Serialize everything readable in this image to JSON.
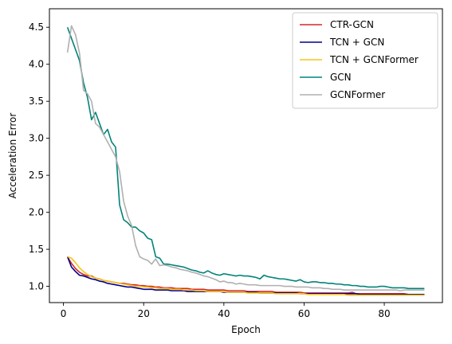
{
  "chart_data": {
    "type": "line",
    "xlabel": "Epoch",
    "ylabel": "Acceleration Error",
    "xlim": [
      -3.5,
      94.5
    ],
    "ylim": [
      0.78,
      4.75
    ],
    "xticks": [
      0,
      20,
      40,
      60,
      80
    ],
    "yticks": [
      1.0,
      1.5,
      2.0,
      2.5,
      3.0,
      3.5,
      4.0,
      4.5
    ],
    "grid": false,
    "legend_position": "top-right",
    "x": [
      1,
      2,
      3,
      4,
      5,
      6,
      7,
      8,
      9,
      10,
      11,
      12,
      13,
      14,
      15,
      16,
      17,
      18,
      19,
      20,
      21,
      22,
      23,
      24,
      25,
      26,
      27,
      28,
      29,
      30,
      31,
      32,
      33,
      34,
      35,
      36,
      37,
      38,
      39,
      40,
      41,
      42,
      43,
      44,
      45,
      46,
      47,
      48,
      49,
      50,
      51,
      52,
      53,
      54,
      55,
      56,
      57,
      58,
      59,
      60,
      61,
      62,
      63,
      64,
      65,
      66,
      67,
      68,
      69,
      70,
      71,
      72,
      73,
      74,
      75,
      76,
      77,
      78,
      79,
      80,
      81,
      82,
      83,
      84,
      85,
      86,
      87,
      88,
      89,
      90
    ],
    "series": [
      {
        "name": "CTR-GCN",
        "color": "#d62728",
        "values": [
          1.4,
          1.31,
          1.24,
          1.19,
          1.16,
          1.14,
          1.14,
          1.11,
          1.1,
          1.08,
          1.07,
          1.06,
          1.05,
          1.04,
          1.04,
          1.03,
          1.02,
          1.02,
          1.01,
          1.01,
          1.0,
          1.0,
          0.99,
          0.99,
          0.98,
          0.98,
          0.98,
          0.97,
          0.97,
          0.97,
          0.97,
          0.96,
          0.96,
          0.96,
          0.96,
          0.95,
          0.95,
          0.95,
          0.95,
          0.95,
          0.94,
          0.94,
          0.94,
          0.94,
          0.94,
          0.93,
          0.93,
          0.93,
          0.93,
          0.93,
          0.93,
          0.93,
          0.92,
          0.92,
          0.92,
          0.92,
          0.92,
          0.92,
          0.92,
          0.91,
          0.91,
          0.91,
          0.91,
          0.91,
          0.91,
          0.91,
          0.91,
          0.91,
          0.91,
          0.91,
          0.91,
          0.92,
          0.9,
          0.9,
          0.9,
          0.9,
          0.9,
          0.9,
          0.9,
          0.9,
          0.9,
          0.9,
          0.9,
          0.9,
          0.9,
          0.89,
          0.89,
          0.89,
          0.89,
          0.89
        ]
      },
      {
        "name": "TCN + GCN",
        "color": "#00008b",
        "values": [
          1.4,
          1.26,
          1.2,
          1.15,
          1.14,
          1.12,
          1.1,
          1.09,
          1.07,
          1.06,
          1.04,
          1.03,
          1.02,
          1.01,
          1.0,
          0.99,
          0.99,
          0.98,
          0.97,
          0.96,
          0.96,
          0.96,
          0.95,
          0.95,
          0.95,
          0.95,
          0.94,
          0.94,
          0.94,
          0.94,
          0.93,
          0.93,
          0.93,
          0.93,
          0.93,
          0.93,
          0.93,
          0.93,
          0.93,
          0.92,
          0.92,
          0.92,
          0.92,
          0.92,
          0.92,
          0.92,
          0.92,
          0.92,
          0.91,
          0.91,
          0.91,
          0.91,
          0.91,
          0.91,
          0.91,
          0.91,
          0.91,
          0.91,
          0.9,
          0.9,
          0.9,
          0.9,
          0.9,
          0.9,
          0.9,
          0.9,
          0.9,
          0.9,
          0.9,
          0.9,
          0.9,
          0.9,
          0.9,
          0.89,
          0.89,
          0.89,
          0.89,
          0.89,
          0.89,
          0.89,
          0.89,
          0.89,
          0.89,
          0.89,
          0.89,
          0.89,
          0.89,
          0.89,
          0.89,
          0.89
        ]
      },
      {
        "name": "TCN + GCNFormer",
        "color": "#f5c518",
        "values": [
          1.4,
          1.38,
          1.32,
          1.25,
          1.2,
          1.16,
          1.13,
          1.11,
          1.1,
          1.08,
          1.07,
          1.06,
          1.05,
          1.04,
          1.03,
          1.02,
          1.01,
          1.0,
          1.0,
          0.99,
          0.99,
          0.98,
          0.98,
          0.97,
          0.97,
          0.97,
          0.96,
          0.96,
          0.96,
          0.95,
          0.95,
          0.95,
          0.94,
          0.94,
          0.94,
          0.93,
          0.93,
          0.93,
          0.93,
          0.93,
          0.92,
          0.92,
          0.92,
          0.92,
          0.92,
          0.91,
          0.91,
          0.91,
          0.91,
          0.91,
          0.91,
          0.91,
          0.9,
          0.9,
          0.9,
          0.9,
          0.9,
          0.9,
          0.9,
          0.9,
          0.89,
          0.89,
          0.89,
          0.89,
          0.89,
          0.89,
          0.89,
          0.89,
          0.89,
          0.89,
          0.88,
          0.88,
          0.88,
          0.88,
          0.88,
          0.88,
          0.88,
          0.88,
          0.88,
          0.88,
          0.88,
          0.88,
          0.88,
          0.88,
          0.88,
          0.88,
          0.88,
          0.88,
          0.88,
          0.88
        ]
      },
      {
        "name": "GCN",
        "color": "#00837a",
        "values": [
          4.5,
          4.35,
          4.2,
          4.05,
          3.75,
          3.55,
          3.25,
          3.35,
          3.2,
          3.05,
          3.12,
          2.95,
          2.88,
          2.1,
          1.9,
          1.86,
          1.8,
          1.8,
          1.75,
          1.72,
          1.65,
          1.63,
          1.4,
          1.38,
          1.3,
          1.3,
          1.29,
          1.28,
          1.27,
          1.26,
          1.24,
          1.22,
          1.21,
          1.19,
          1.18,
          1.21,
          1.18,
          1.16,
          1.15,
          1.17,
          1.16,
          1.15,
          1.14,
          1.15,
          1.14,
          1.14,
          1.13,
          1.12,
          1.1,
          1.15,
          1.13,
          1.12,
          1.11,
          1.1,
          1.1,
          1.09,
          1.08,
          1.07,
          1.09,
          1.06,
          1.05,
          1.06,
          1.06,
          1.05,
          1.05,
          1.04,
          1.04,
          1.03,
          1.03,
          1.02,
          1.02,
          1.01,
          1.01,
          1.0,
          1.0,
          0.99,
          0.99,
          0.99,
          1.0,
          1.0,
          0.99,
          0.98,
          0.98,
          0.98,
          0.98,
          0.97,
          0.97,
          0.97,
          0.97,
          0.97
        ]
      },
      {
        "name": "GCNFormer",
        "color": "#b0b0b0",
        "values": [
          4.16,
          4.52,
          4.4,
          4.15,
          3.65,
          3.6,
          3.5,
          3.2,
          3.15,
          3.05,
          2.95,
          2.85,
          2.75,
          2.55,
          2.15,
          1.95,
          1.82,
          1.55,
          1.4,
          1.37,
          1.35,
          1.3,
          1.37,
          1.28,
          1.29,
          1.28,
          1.26,
          1.25,
          1.23,
          1.22,
          1.21,
          1.19,
          1.18,
          1.16,
          1.14,
          1.13,
          1.11,
          1.09,
          1.06,
          1.07,
          1.05,
          1.05,
          1.03,
          1.04,
          1.03,
          1.02,
          1.02,
          1.02,
          1.01,
          1.01,
          1.01,
          1.01,
          1.01,
          1.01,
          1.0,
          1.0,
          1.0,
          0.99,
          0.99,
          0.99,
          0.99,
          0.98,
          0.98,
          0.98,
          0.97,
          0.97,
          0.96,
          0.96,
          0.96,
          0.95,
          0.95,
          0.95,
          0.95,
          0.95,
          0.95,
          0.95,
          0.95,
          0.95,
          0.95,
          0.95,
          0.95,
          0.95,
          0.95,
          0.94,
          0.95,
          0.95,
          0.95,
          0.95,
          0.95,
          0.95
        ]
      }
    ]
  }
}
